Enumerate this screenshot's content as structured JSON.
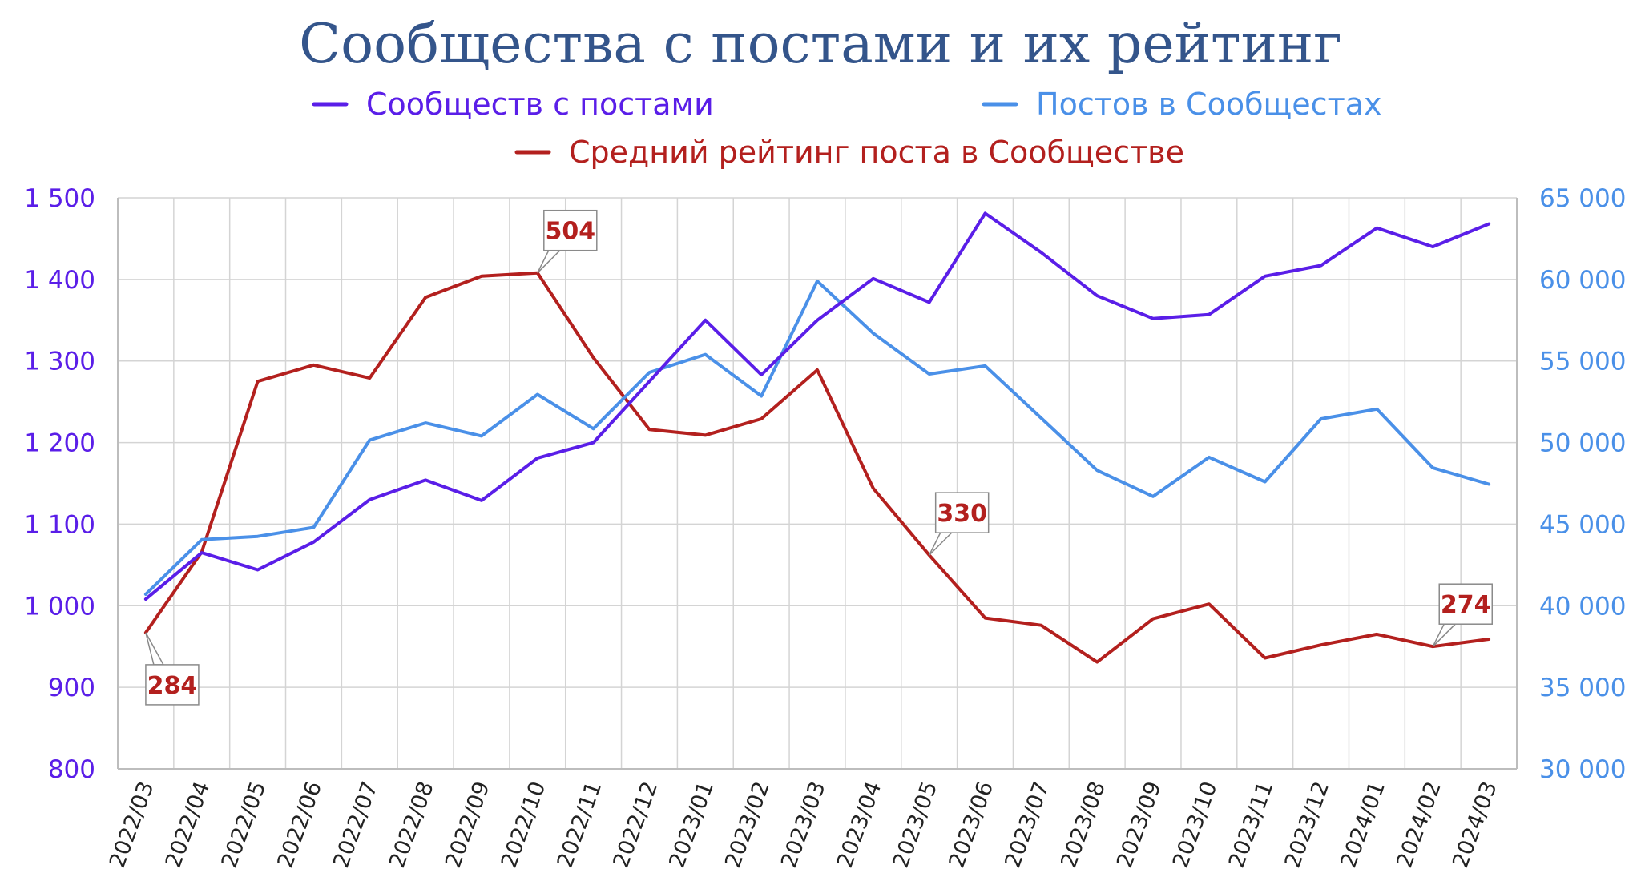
{
  "chart_data": {
    "type": "line",
    "title": "Сообщества с постами и их рейтинг",
    "categories": [
      "2022/03",
      "2022/04",
      "2022/05",
      "2022/06",
      "2022/07",
      "2022/08",
      "2022/09",
      "2022/10",
      "2022/11",
      "2022/12",
      "2023/01",
      "2023/02",
      "2023/03",
      "2023/04",
      "2023/05",
      "2023/06",
      "2023/07",
      "2023/08",
      "2023/09",
      "2023/10",
      "2023/11",
      "2023/12",
      "2024/01",
      "2024/02",
      "2024/03"
    ],
    "left_axis": {
      "ylim": [
        800,
        1500
      ],
      "ticks": [
        800,
        900,
        1000,
        1100,
        1200,
        1300,
        1400,
        1500
      ],
      "tick_labels": [
        "800",
        "900",
        "1 000",
        "1 100",
        "1 200",
        "1 300",
        "1 400",
        "1 500"
      ],
      "color": "#5a1ee8"
    },
    "right_axis": {
      "ylim": [
        30000,
        65000
      ],
      "ticks": [
        30000,
        35000,
        40000,
        45000,
        50000,
        55000,
        60000,
        65000
      ],
      "tick_labels": [
        "30 000",
        "35 000",
        "40 000",
        "45 000",
        "50 000",
        "55 000",
        "60 000",
        "65 000"
      ],
      "color": "#4a90e8"
    },
    "series": [
      {
        "name": "Сообществ с постами",
        "axis": "left",
        "color": "#5a1ee8",
        "values": [
          1008,
          1065,
          1044,
          1078,
          1130,
          1154,
          1129,
          1181,
          1200,
          1275,
          1350,
          1283,
          1350,
          1401,
          1372,
          1481,
          1433,
          1380,
          1352,
          1357,
          1404,
          1417,
          1463,
          1440,
          1468
        ]
      },
      {
        "name": "Постов в Сообщестах",
        "axis": "right",
        "color": "#4a90e8",
        "values": [
          40700,
          44050,
          44250,
          44800,
          50150,
          51200,
          50400,
          52950,
          50850,
          54300,
          55400,
          52850,
          59900,
          56700,
          54200,
          54700,
          51500,
          48300,
          46700,
          49100,
          47600,
          51450,
          52050,
          48450,
          47450
        ]
      },
      {
        "name": "Средний рейтинг поста в Сообществе",
        "axis": "left",
        "color": "#b3201e",
        "values": [
          967,
          1066,
          1275,
          1295,
          1279,
          1378,
          1404,
          1408,
          1304,
          1216,
          1209,
          1229,
          1289,
          1144,
          1062,
          985,
          976,
          931,
          984,
          1002,
          936,
          952,
          965,
          950,
          959
        ]
      }
    ],
    "annotations": [
      {
        "series": 2,
        "index": 0,
        "text": "284",
        "place": "below"
      },
      {
        "series": 2,
        "index": 7,
        "text": "504",
        "place": "above"
      },
      {
        "series": 2,
        "index": 14,
        "text": "330",
        "place": "above"
      },
      {
        "series": 2,
        "index": 23,
        "text": "274",
        "place": "above"
      }
    ],
    "grid": true,
    "legend_position": "top"
  }
}
